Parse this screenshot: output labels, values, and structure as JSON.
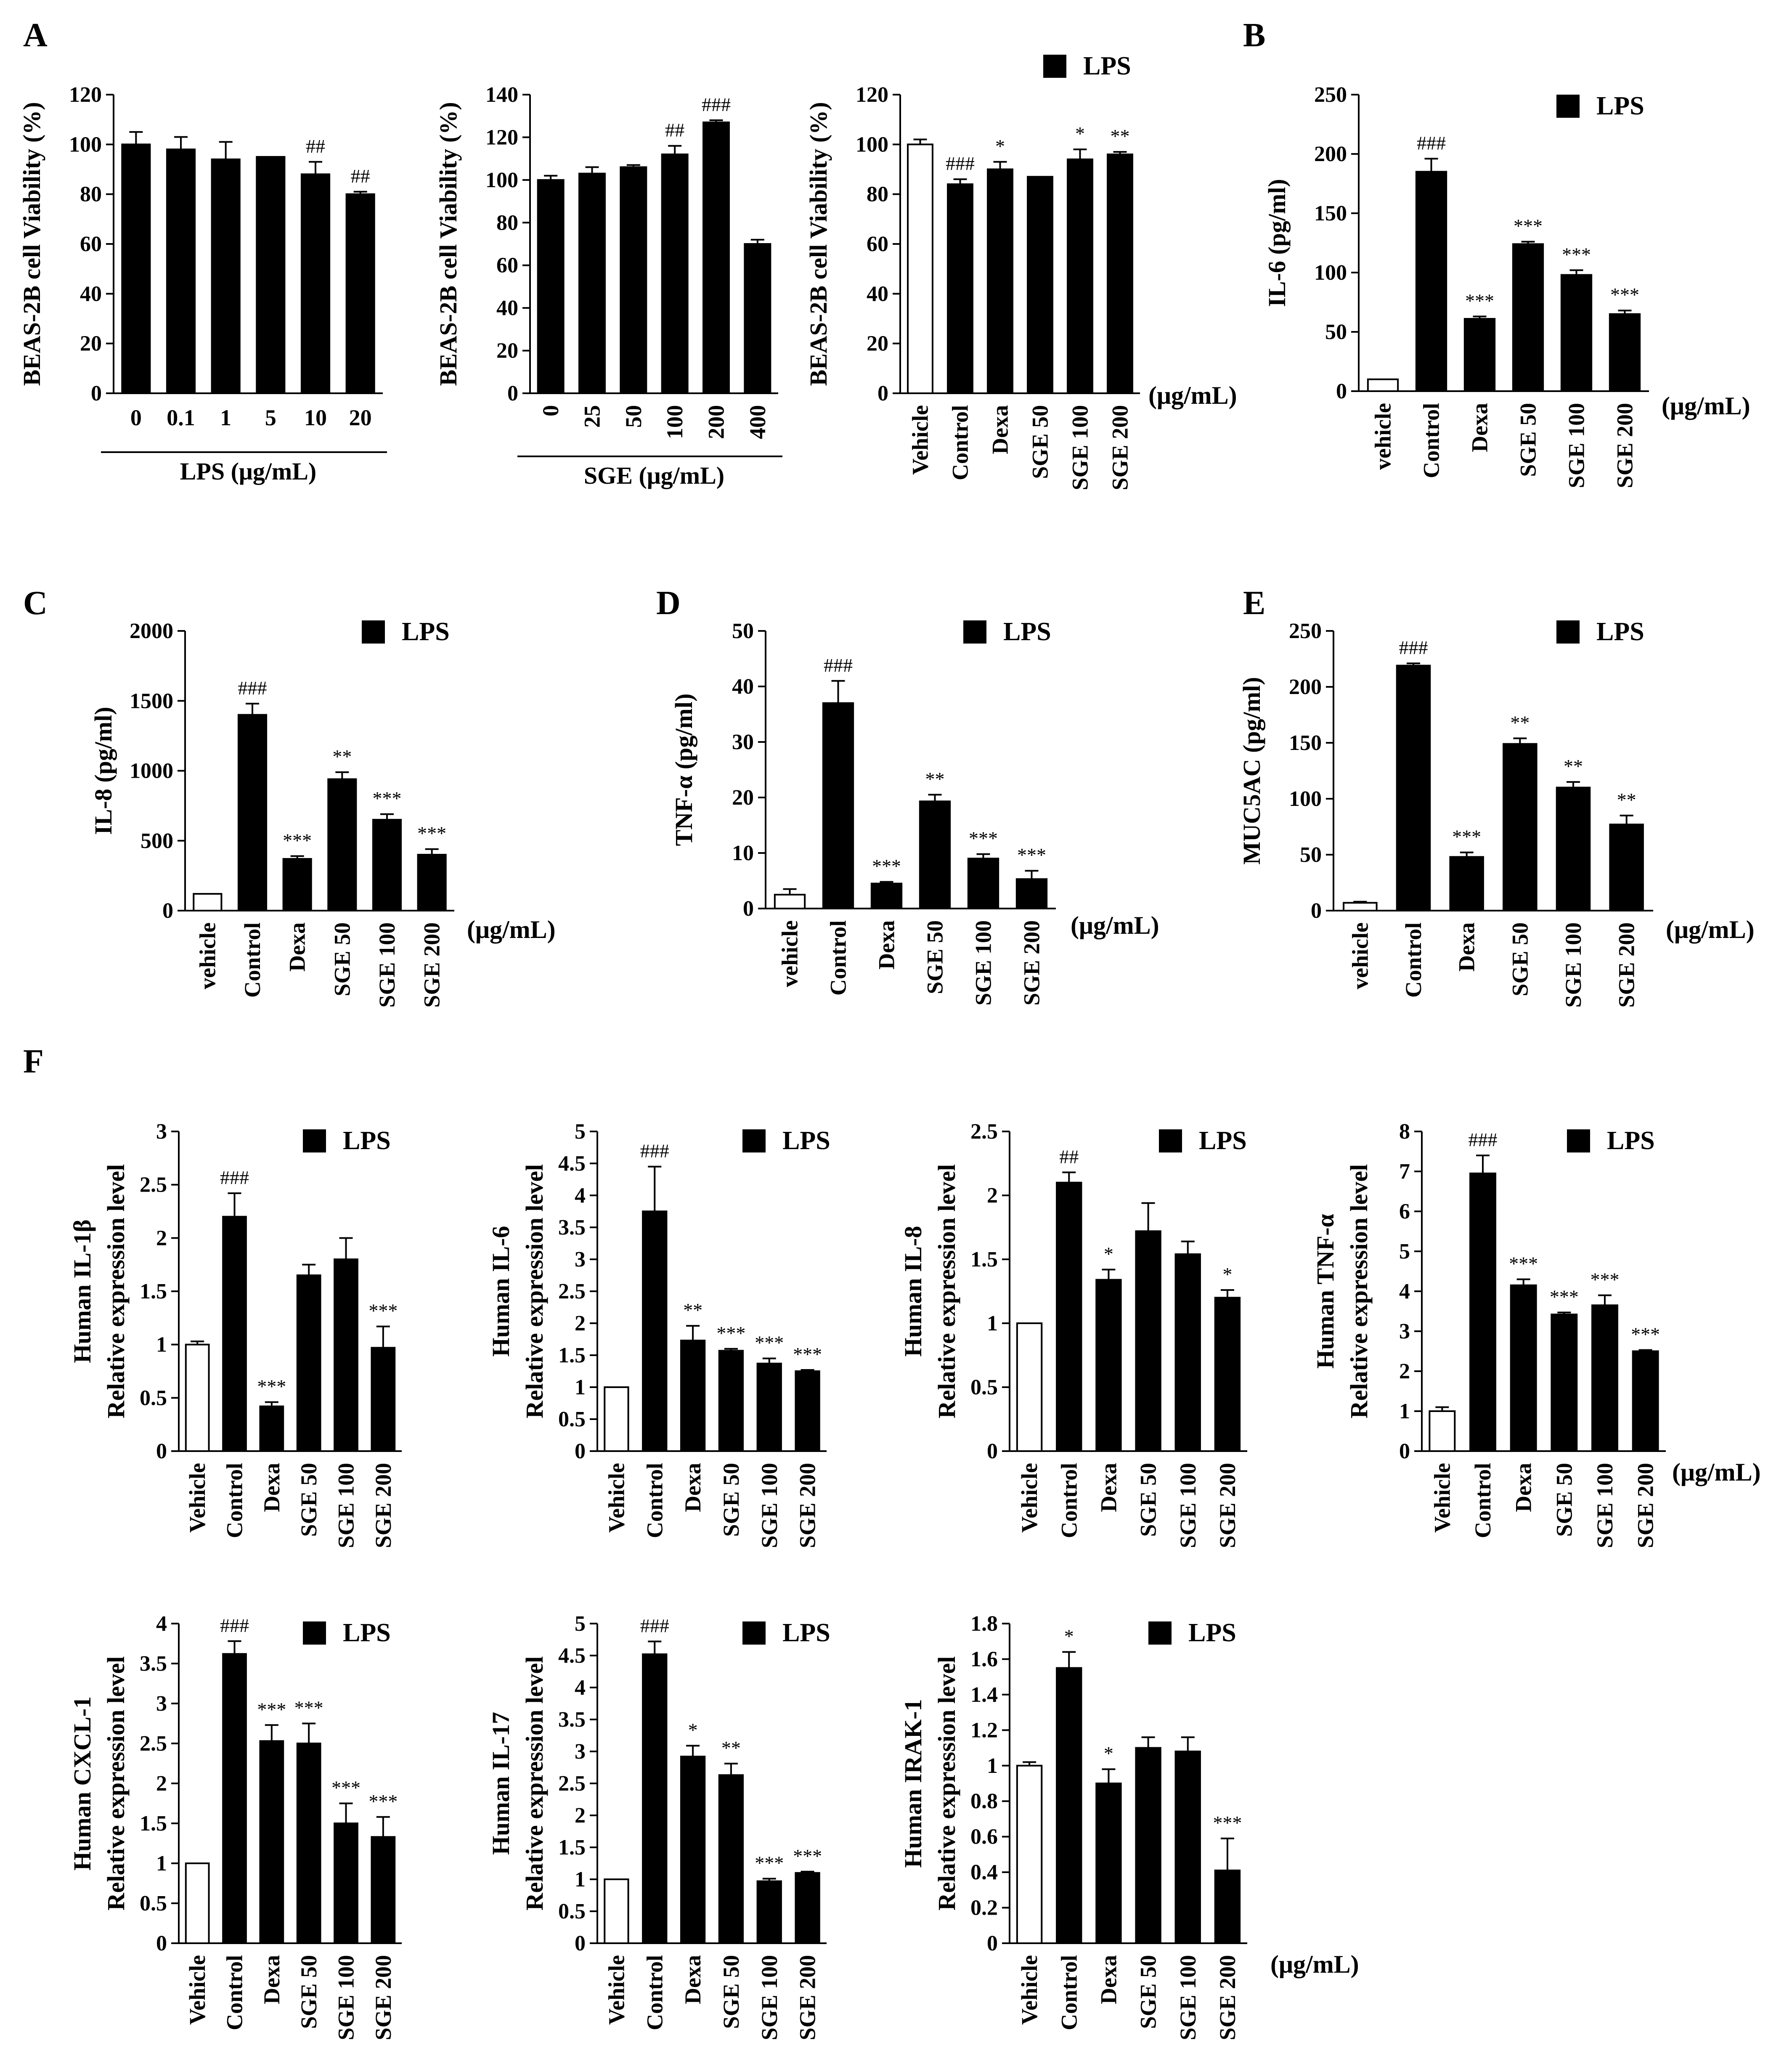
{
  "units_label": "(μg/mL)",
  "legend_label": "LPS",
  "colors": {
    "bar": "#000000",
    "open_bar": "#ffffff",
    "stroke": "#000000"
  },
  "chart_data": [
    {
      "id": "A1",
      "panel": "A",
      "type": "bar",
      "ylabel": "BEAS-2B cell Viability (%)",
      "ylim": [
        0,
        120
      ],
      "yticks": [
        0,
        20,
        40,
        60,
        80,
        100,
        120
      ],
      "categories": [
        "0",
        "0.1",
        "1",
        "5",
        "10",
        "20"
      ],
      "values": [
        100,
        98,
        94,
        95,
        88,
        80
      ],
      "errors": [
        5,
        5,
        7,
        0,
        5,
        1
      ],
      "open": [
        false,
        false,
        false,
        false,
        false,
        false
      ],
      "annotations": [
        "",
        "",
        "",
        "",
        "##",
        "##"
      ],
      "group_label": "LPS (μg/mL)",
      "legend": false,
      "units": false,
      "rotate": false
    },
    {
      "id": "A2",
      "panel": "",
      "type": "bar",
      "ylabel": "BEAS-2B cell Viability (%)",
      "ylim": [
        0,
        140
      ],
      "yticks": [
        0,
        20,
        40,
        60,
        80,
        100,
        120,
        140
      ],
      "categories": [
        "0",
        "25",
        "50",
        "100",
        "200",
        "400"
      ],
      "values": [
        100,
        103,
        106,
        112,
        127,
        70
      ],
      "errors": [
        2,
        3,
        1,
        4,
        1,
        2
      ],
      "open": [
        false,
        false,
        false,
        false,
        false,
        false
      ],
      "annotations": [
        "",
        "",
        "",
        "##",
        "###",
        ""
      ],
      "group_label": "SGE (μg/mL)",
      "legend": false,
      "units": false,
      "rotate": true
    },
    {
      "id": "A3",
      "panel": "",
      "type": "bar",
      "ylabel": "BEAS-2B cell Viability (%)",
      "ylim": [
        0,
        120
      ],
      "yticks": [
        0,
        20,
        40,
        60,
        80,
        100,
        120
      ],
      "categories": [
        "Vehicle",
        "Control",
        "Dexa",
        "SGE 50",
        "SGE 100",
        "SGE 200"
      ],
      "values": [
        100,
        84,
        90,
        87,
        94,
        96
      ],
      "errors": [
        2,
        2,
        3,
        0,
        4,
        1
      ],
      "open": [
        true,
        false,
        false,
        false,
        false,
        false
      ],
      "annotations": [
        "",
        "###",
        "*",
        "",
        "*",
        "**"
      ],
      "group_label": "",
      "legend": true,
      "units": true,
      "rotate": true
    },
    {
      "id": "B",
      "panel": "B",
      "type": "bar",
      "ylabel": "IL-6 (pg/ml)",
      "ylim": [
        0,
        250
      ],
      "yticks": [
        0,
        50,
        100,
        150,
        200,
        250
      ],
      "categories": [
        "vehicle",
        "Control",
        "Dexa",
        "SGE 50",
        "SGE 100",
        "SGE 200"
      ],
      "values": [
        10,
        185,
        61,
        124,
        98,
        65
      ],
      "errors": [
        0,
        11,
        2,
        2,
        4,
        3
      ],
      "open": [
        true,
        false,
        false,
        false,
        false,
        false
      ],
      "annotations": [
        "",
        "###",
        "***",
        "***",
        "***",
        "***"
      ],
      "group_label": "",
      "legend": true,
      "units": true,
      "rotate": true
    },
    {
      "id": "C",
      "panel": "C",
      "type": "bar",
      "ylabel": "IL-8 (pg/ml)",
      "ylim": [
        0,
        2000
      ],
      "yticks": [
        0,
        500,
        1000,
        1500,
        2000
      ],
      "categories": [
        "vehicle",
        "Control",
        "Dexa",
        "SGE 50",
        "SGE 100",
        "SGE 200"
      ],
      "values": [
        120,
        1400,
        370,
        940,
        650,
        400
      ],
      "errors": [
        0,
        80,
        20,
        50,
        40,
        40
      ],
      "open": [
        true,
        false,
        false,
        false,
        false,
        false
      ],
      "annotations": [
        "",
        "###",
        "***",
        "**",
        "***",
        "***"
      ],
      "group_label": "",
      "legend": true,
      "units": true,
      "rotate": true
    },
    {
      "id": "D",
      "panel": "D",
      "type": "bar",
      "ylabel": "TNF-α (pg/ml)",
      "ylim": [
        0,
        50
      ],
      "yticks": [
        0,
        10,
        20,
        30,
        40,
        50
      ],
      "categories": [
        "vehicle",
        "Control",
        "Dexa",
        "SGE 50",
        "SGE 100",
        "SGE 200"
      ],
      "values": [
        2.5,
        37,
        4.5,
        19.3,
        9,
        5.3
      ],
      "errors": [
        1,
        4,
        0.3,
        1.2,
        0.8,
        1.5
      ],
      "open": [
        true,
        false,
        false,
        false,
        false,
        false
      ],
      "annotations": [
        "",
        "###",
        "***",
        "**",
        "***",
        "***"
      ],
      "group_label": "",
      "legend": true,
      "units": true,
      "rotate": true
    },
    {
      "id": "E",
      "panel": "E",
      "type": "bar",
      "ylabel": "MUC5AC (pg/ml)",
      "ylim": [
        0,
        250
      ],
      "yticks": [
        0,
        50,
        100,
        150,
        200,
        250
      ],
      "categories": [
        "vehicle",
        "Control",
        "Dexa",
        "SGE 50",
        "SGE 100",
        "SGE 200"
      ],
      "values": [
        7,
        219,
        48,
        149,
        110,
        77
      ],
      "errors": [
        1,
        2,
        4,
        5,
        5,
        8
      ],
      "open": [
        true,
        false,
        false,
        false,
        false,
        false
      ],
      "annotations": [
        "",
        "###",
        "***",
        "**",
        "**",
        "**"
      ],
      "group_label": "",
      "legend": true,
      "units": true,
      "rotate": true
    },
    {
      "id": "F1",
      "panel": "F",
      "type": "bar",
      "ylabel": "Human IL-1β",
      "ylabel2": "Relative expression level",
      "ylim": [
        0,
        3
      ],
      "yticks": [
        0,
        0.5,
        1,
        1.5,
        2,
        2.5,
        3
      ],
      "categories": [
        "Vehicle",
        "Control",
        "Dexa",
        "SGE 50",
        "SGE 100",
        "SGE 200"
      ],
      "values": [
        1,
        2.2,
        0.42,
        1.65,
        1.8,
        0.97
      ],
      "errors": [
        0.03,
        0.22,
        0.04,
        0.1,
        0.2,
        0.2
      ],
      "open": [
        true,
        false,
        false,
        false,
        false,
        false
      ],
      "annotations": [
        "",
        "###",
        "***",
        "",
        "",
        "***"
      ],
      "group_label": "",
      "legend": true,
      "units": false,
      "rotate": true
    },
    {
      "id": "F2",
      "panel": "",
      "type": "bar",
      "ylabel": "Human IL-6",
      "ylabel2": "Relative expression level",
      "ylim": [
        0,
        5
      ],
      "yticks": [
        0,
        0.5,
        1,
        1.5,
        2,
        2.5,
        3,
        3.5,
        4,
        4.5,
        5
      ],
      "categories": [
        "Vehicle",
        "Control",
        "Dexa",
        "SGE 50",
        "SGE 100",
        "SGE 200"
      ],
      "values": [
        1,
        3.75,
        1.73,
        1.57,
        1.37,
        1.25
      ],
      "errors": [
        0,
        0.7,
        0.23,
        0.03,
        0.08,
        0.02
      ],
      "open": [
        true,
        false,
        false,
        false,
        false,
        false
      ],
      "annotations": [
        "",
        "###",
        "**",
        "***",
        "***",
        "***"
      ],
      "group_label": "",
      "legend": true,
      "units": false,
      "rotate": true
    },
    {
      "id": "F3",
      "panel": "",
      "type": "bar",
      "ylabel": "Human IL-8",
      "ylabel2": "Relative expression level",
      "ylim": [
        0,
        2.5
      ],
      "yticks": [
        0,
        0.5,
        1,
        1.5,
        2,
        2.5
      ],
      "categories": [
        "Vehicle",
        "Control",
        "Dexa",
        "SGE 50",
        "SGE 100",
        "SGE 200"
      ],
      "values": [
        1,
        2.1,
        1.34,
        1.72,
        1.54,
        1.2
      ],
      "errors": [
        0,
        0.08,
        0.08,
        0.22,
        0.1,
        0.06
      ],
      "open": [
        true,
        false,
        false,
        false,
        false,
        false
      ],
      "annotations": [
        "",
        "##",
        "*",
        "",
        "",
        "*"
      ],
      "group_label": "",
      "legend": true,
      "units": false,
      "rotate": true
    },
    {
      "id": "F4",
      "panel": "",
      "type": "bar",
      "ylabel": "Human TNF-α",
      "ylabel2": "Relative expression level",
      "ylim": [
        0,
        8
      ],
      "yticks": [
        0,
        1,
        2,
        3,
        4,
        5,
        6,
        7,
        8
      ],
      "categories": [
        "Vehicle",
        "Control",
        "Dexa",
        "SGE 50",
        "SGE 100",
        "SGE 200"
      ],
      "values": [
        1,
        6.95,
        4.15,
        3.42,
        3.65,
        2.5
      ],
      "errors": [
        0.1,
        0.45,
        0.15,
        0.05,
        0.25,
        0.03
      ],
      "open": [
        true,
        false,
        false,
        false,
        false,
        false
      ],
      "annotations": [
        "",
        "###",
        "***",
        "***",
        "***",
        "***"
      ],
      "group_label": "",
      "legend": true,
      "units": true,
      "rotate": true
    },
    {
      "id": "F5",
      "panel": "",
      "type": "bar",
      "ylabel": "Human CXCL-1",
      "ylabel2": "Relative expression level",
      "ylim": [
        0,
        4
      ],
      "yticks": [
        0,
        0.5,
        1,
        1.5,
        2,
        2.5,
        3,
        3.5,
        4
      ],
      "categories": [
        "Vehicle",
        "Control",
        "Dexa",
        "SGE 50",
        "SGE 100",
        "SGE 200"
      ],
      "values": [
        1,
        3.62,
        2.53,
        2.5,
        1.5,
        1.33
      ],
      "errors": [
        0,
        0.16,
        0.2,
        0.25,
        0.25,
        0.25
      ],
      "open": [
        true,
        false,
        false,
        false,
        false,
        false
      ],
      "annotations": [
        "",
        "###",
        "***",
        "***",
        "***",
        "***"
      ],
      "group_label": "",
      "legend": true,
      "units": false,
      "rotate": true
    },
    {
      "id": "F6",
      "panel": "",
      "type": "bar",
      "ylabel": "Human IL-17",
      "ylabel2": "Relative expression level",
      "ylim": [
        0,
        5
      ],
      "yticks": [
        0,
        0.5,
        1,
        1.5,
        2,
        2.5,
        3,
        3.5,
        4,
        4.5,
        5
      ],
      "categories": [
        "Vehicle",
        "Control",
        "Dexa",
        "SGE 50",
        "SGE 100",
        "SGE 200"
      ],
      "values": [
        1,
        4.52,
        2.92,
        2.63,
        0.97,
        1.1
      ],
      "errors": [
        0,
        0.2,
        0.17,
        0.18,
        0.04,
        0.02
      ],
      "open": [
        true,
        false,
        false,
        false,
        false,
        false
      ],
      "annotations": [
        "",
        "###",
        "*",
        "**",
        "***",
        "***"
      ],
      "group_label": "",
      "legend": true,
      "units": false,
      "rotate": true
    },
    {
      "id": "F7",
      "panel": "",
      "type": "bar",
      "ylabel": "Human IRAK-1",
      "ylabel2": "Relative expression level",
      "ylim": [
        0,
        1.8
      ],
      "yticks": [
        0,
        0.2,
        0.4,
        0.6,
        0.8,
        1,
        1.2,
        1.4,
        1.6,
        1.8
      ],
      "categories": [
        "Vehicle",
        "Control",
        "Dexa",
        "SGE 50",
        "SGE 100",
        "SGE 200"
      ],
      "values": [
        1,
        1.55,
        0.9,
        1.1,
        1.08,
        0.41
      ],
      "errors": [
        0.02,
        0.09,
        0.08,
        0.06,
        0.08,
        0.18
      ],
      "open": [
        true,
        false,
        false,
        false,
        false,
        false
      ],
      "annotations": [
        "",
        "*",
        "*",
        "",
        "",
        "***"
      ],
      "group_label": "",
      "legend": true,
      "units": true,
      "rotate": true
    }
  ]
}
